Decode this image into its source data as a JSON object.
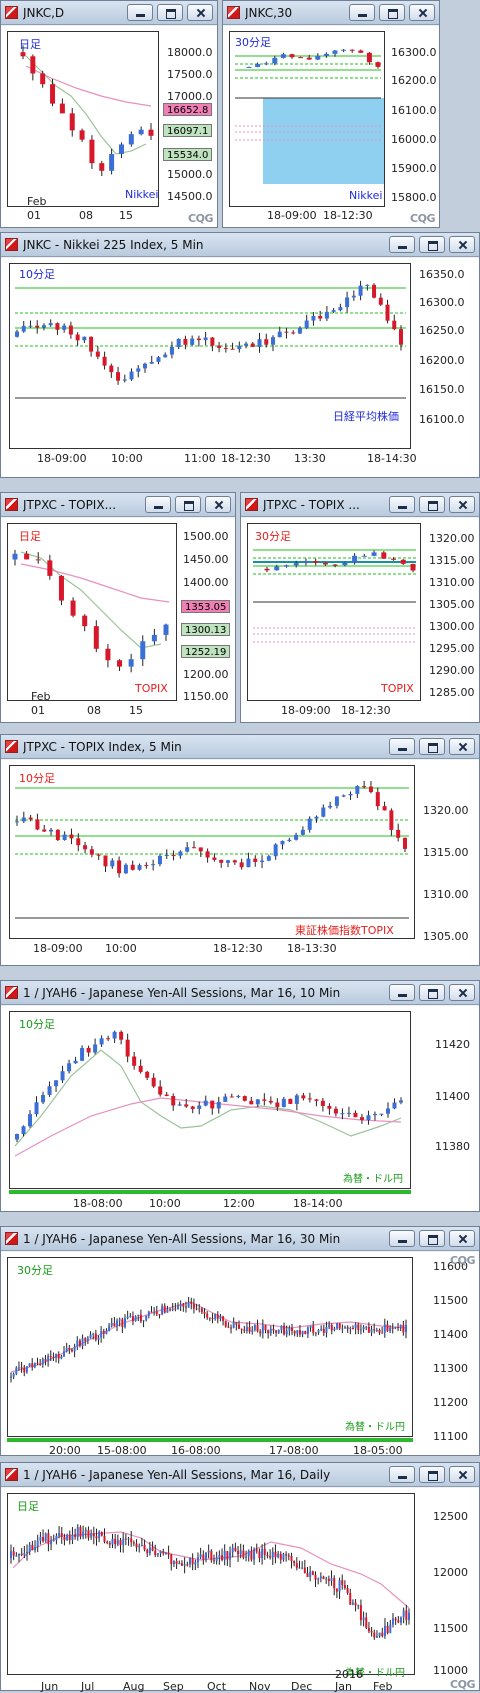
{
  "windows": {
    "w1": {
      "title": "JNKC,D",
      "label": "日足",
      "footer": "Nikkei",
      "prices": [
        "18000.0",
        "17500.0",
        "17000.0",
        "16500.0",
        "16000.0",
        "15500.0",
        "15000.0",
        "14500.0"
      ],
      "tags": [
        "16652.8",
        "16097.1",
        "15534.0"
      ],
      "xlabels": [
        "01",
        "08",
        "15"
      ],
      "month": "Feb",
      "logo": "CQG"
    },
    "w2": {
      "title": "JNKC,30",
      "label": "30分足",
      "footer": "Nikkei",
      "prices": [
        "16300.0",
        "16200.0",
        "16100.0",
        "16000.0",
        "15900.0",
        "15800.0"
      ],
      "xlabels": [
        "18-09:00",
        "18-12:30"
      ],
      "logo": "CQG"
    },
    "w3": {
      "title": "JNKC - Nikkei 225 Index, 5 Min",
      "label": "10分足",
      "footer": "日経平均株価",
      "prices": [
        "16350.0",
        "16300.0",
        "16250.0",
        "16200.0",
        "16150.0",
        "16100.0"
      ],
      "xlabels": [
        "18-09:00",
        "10:00",
        "11:00",
        "18-12:30",
        "13:30",
        "18-14:30"
      ]
    },
    "w4": {
      "title": "JTPXC - TOPIX...",
      "label": "日足",
      "footer": "TOPIX",
      "prices": [
        "1500.00",
        "1450.00",
        "1400.00",
        "1350.00",
        "1300.00",
        "1250.00",
        "1200.00",
        "1150.00"
      ],
      "tags": [
        "1353.05",
        "1300.13",
        "1252.19"
      ],
      "xlabels": [
        "01",
        "08",
        "15"
      ],
      "month": "Feb"
    },
    "w5": {
      "title": "JTPXC - TOPIX ...",
      "label": "30分足",
      "footer": "TOPIX",
      "prices": [
        "1320.00",
        "1315.00",
        "1310.00",
        "1305.00",
        "1300.00",
        "1295.00",
        "1290.00",
        "1285.00"
      ],
      "xlabels": [
        "18-09:00",
        "18-12:30"
      ]
    },
    "w6": {
      "title": "JTPXC - TOPIX Index, 5 Min",
      "label": "10分足",
      "footer": "東証株価指数TOPIX",
      "prices": [
        "1320.00",
        "1315.00",
        "1310.00",
        "1305.00"
      ],
      "xlabels": [
        "18-09:00",
        "10:00",
        "18-12:30",
        "18-13:30"
      ]
    },
    "w7": {
      "title": "1 / JYAH6 - Japanese Yen-All Sessions, Mar 16, 10 Min",
      "label": "10分足",
      "footer": "為替・ドル円",
      "prices": [
        "11420",
        "11400",
        "11380",
        "11360"
      ],
      "xlabels": [
        "18-08:00",
        "10:00",
        "12:00",
        "18-14:00"
      ]
    },
    "w8": {
      "title": "1 / JYAH6 - Japanese Yen-All Sessions, Mar 16, 30 Min",
      "label": "30分足",
      "footer": "為替・ドル円",
      "prices": [
        "11600",
        "11500",
        "11400",
        "11300",
        "11200",
        "11100"
      ],
      "xlabels": [
        "20:00",
        "15-08:00",
        "16-08:00",
        "17-08:00",
        "18-05:00"
      ],
      "logo": "CQG"
    },
    "w9": {
      "title": "1 / JYAH6 - Japanese Yen-All Sessions, Mar 16, Daily",
      "label": "日足",
      "footer": "為替・ドル円",
      "prices": [
        "12500",
        "12000",
        "11500",
        "11000"
      ],
      "xlabels": [
        "Jun",
        "Jul",
        "Aug",
        "Sep",
        "Oct",
        "Nov",
        "Dec",
        "Jan",
        "Feb"
      ],
      "year": "2016",
      "logo": "CQG"
    }
  },
  "colors": {
    "up": "#3a6fd8",
    "down": "#d8182a",
    "ma_fast": "#9ac49a",
    "ma_slow": "#e890c0",
    "level": "#22c122",
    "highlight": "#8fd0f0"
  }
}
